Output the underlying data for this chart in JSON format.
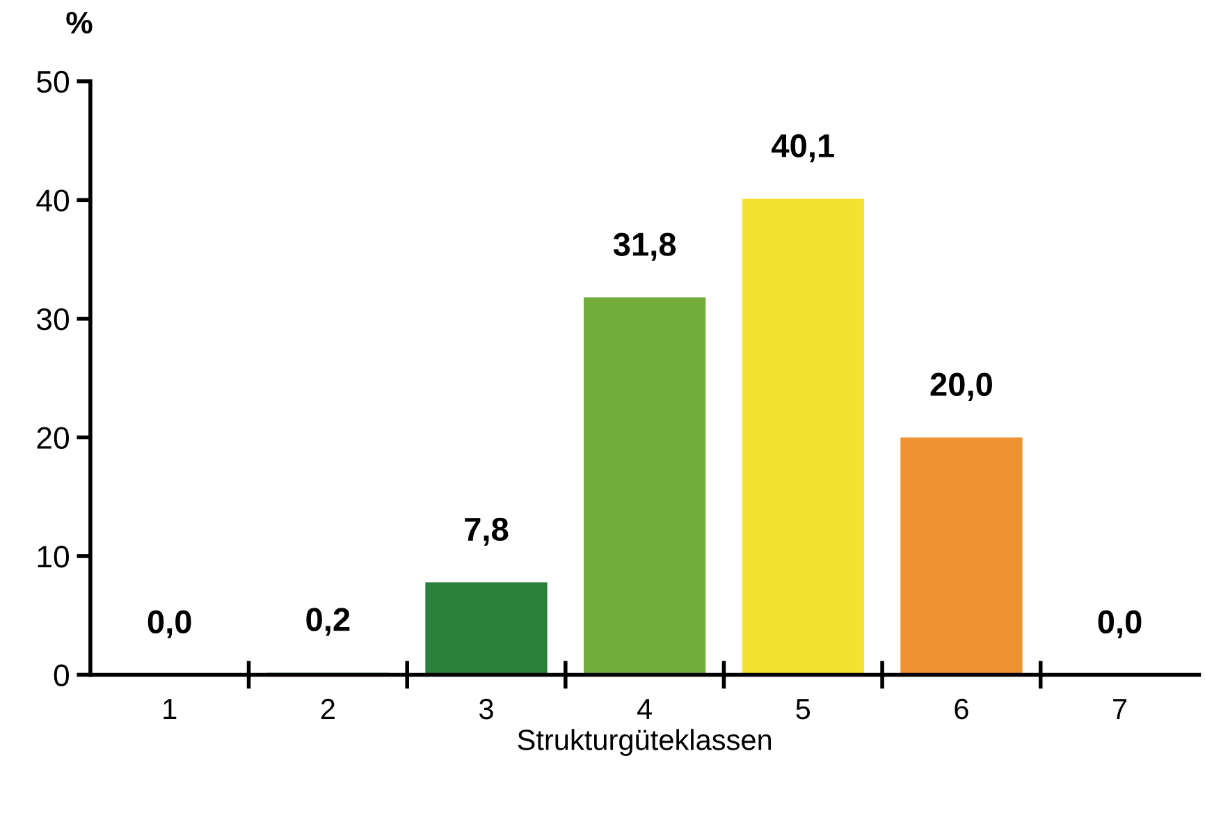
{
  "chart_data": {
    "type": "bar",
    "xlabel": "Strukturgüteklassen",
    "ylabel": "%",
    "categories": [
      "1",
      "2",
      "3",
      "4",
      "5",
      "6",
      "7"
    ],
    "values": [
      0.0,
      0.2,
      7.8,
      31.8,
      40.1,
      20.0,
      0.0
    ],
    "colors": [
      "#1f4e9c",
      "#a9cdd3",
      "#2a7f3a",
      "#72ad3c",
      "#f3e232",
      "#ee9233",
      "#e2302a"
    ],
    "value_labels": [
      "0,0",
      "0,2",
      "7,8",
      "31,8",
      "40,1",
      "20,0",
      "0,0"
    ],
    "ylim": [
      0,
      50
    ],
    "yticks": [
      0,
      10,
      20,
      30,
      40,
      50
    ],
    "grid": false,
    "legend": false
  }
}
